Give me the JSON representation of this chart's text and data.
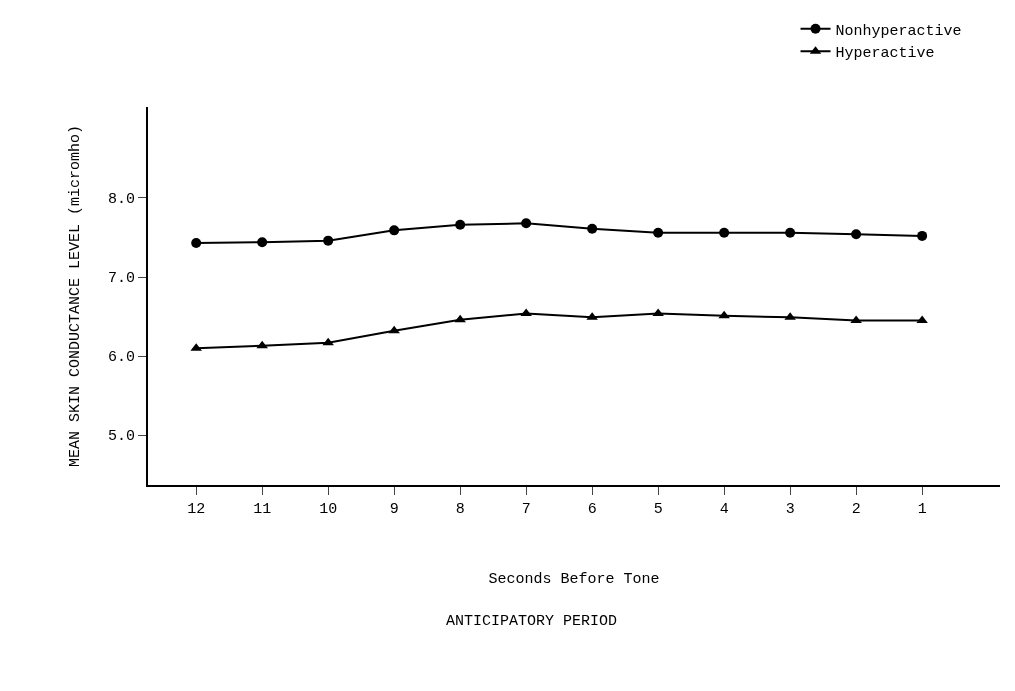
{
  "chart_data": {
    "type": "line",
    "xlabel": "Seconds Before Tone",
    "ylabel": "MEAN SKIN CONDUCTANCE LEVEL (micromho)",
    "categories": [
      "12",
      "11",
      "10",
      "9",
      "8",
      "7",
      "6",
      "5",
      "4",
      "3",
      "2",
      "1"
    ],
    "series": [
      {
        "name": "Nonhyperactive",
        "color": "#000000",
        "marker": "circle",
        "values": [
          7.43,
          7.44,
          7.46,
          7.59,
          7.66,
          7.68,
          7.61,
          7.56,
          7.56,
          7.56,
          7.54,
          7.52
        ]
      },
      {
        "name": "Hyperactive",
        "color": "#000000",
        "marker": "triangle",
        "values": [
          6.1,
          6.13,
          6.17,
          6.32,
          6.46,
          6.54,
          6.49,
          6.54,
          6.51,
          6.49,
          6.45,
          6.45
        ]
      }
    ],
    "ylim": [
      4.37,
      9.15
    ],
    "yticks": [
      {
        "value": 5,
        "label": "5.0"
      },
      {
        "value": 6,
        "label": "6.0"
      },
      {
        "value": 7,
        "label": "7.0"
      },
      {
        "value": 8,
        "label": "8.0"
      }
    ],
    "grid": false,
    "legend": "top right",
    "line_style": "solid",
    "annotations": [
      "ANTICIPATORY PERIOD"
    ]
  }
}
